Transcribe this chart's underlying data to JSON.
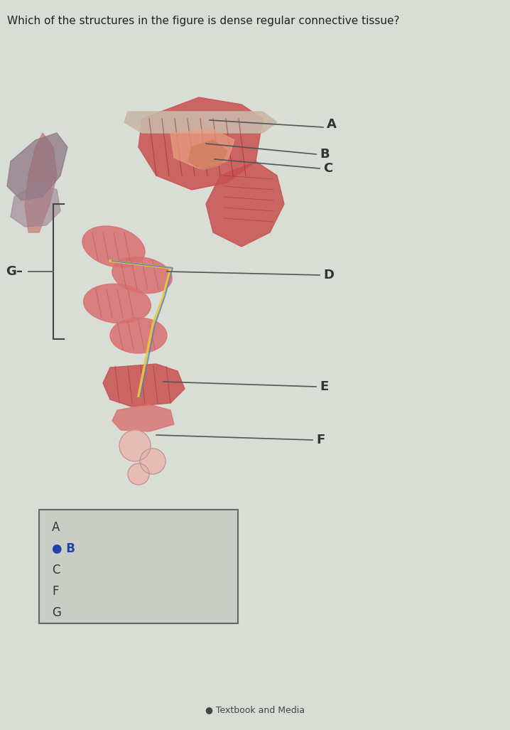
{
  "question": "Which of the structures in the figure is dense regular connective tissue?",
  "background_color": "#d8ddd6",
  "answer_options": [
    "A",
    "● B",
    "C",
    "F",
    "G"
  ],
  "selected_answer": "B",
  "footer_text": "Textbook and Media",
  "label_A": "A",
  "label_B": "B",
  "label_C": "C",
  "label_D": "D",
  "label_E": "E",
  "label_F": "F",
  "label_G": "G",
  "line_color": "#555555",
  "label_color": "#333333",
  "answer_box_color": "#c8cec6",
  "answer_box_border": "#666666",
  "question_color": "#222222",
  "question_fontsize": 11,
  "label_fontsize": 13,
  "answer_fontsize": 12
}
